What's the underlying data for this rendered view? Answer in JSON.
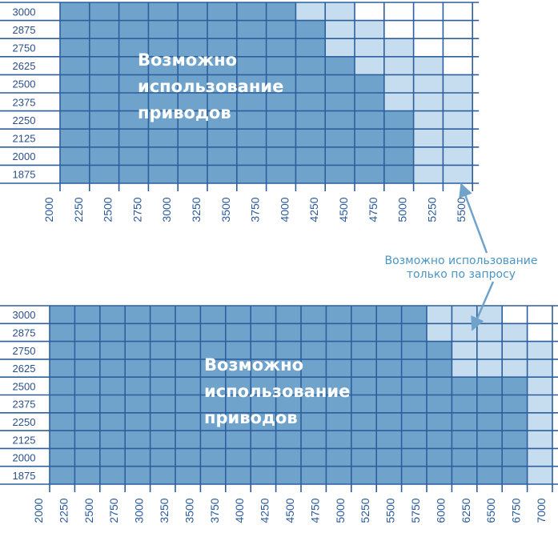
{
  "grids": [
    {
      "rows": [
        "3000",
        "2875",
        "2750",
        "2625",
        "2500",
        "2375",
        "2250",
        "2125",
        "2000",
        "1875"
      ],
      "columns": [
        "2000",
        "2250",
        "2500",
        "2750",
        "3000",
        "3250",
        "3500",
        "3750",
        "4000",
        "4250",
        "4500",
        "4750",
        "5000",
        "5250",
        "5500"
      ],
      "cells": [
        {
          "dark": 8,
          "light": 2
        },
        {
          "dark": 9,
          "light": 2
        },
        {
          "dark": 9,
          "light": 3
        },
        {
          "dark": 10,
          "light": 3
        },
        {
          "dark": 11,
          "light": 3
        },
        {
          "dark": 11,
          "light": 3
        },
        {
          "dark": 12,
          "light": 2
        },
        {
          "dark": 12,
          "light": 2
        },
        {
          "dark": 12,
          "light": 2
        },
        {
          "dark": 12,
          "light": 2
        }
      ],
      "label": [
        "Возможно",
        "использование",
        "приводов"
      ]
    },
    {
      "rows": [
        "3000",
        "2875",
        "2750",
        "2625",
        "2500",
        "2375",
        "2250",
        "2125",
        "2000",
        "1875"
      ],
      "columns": [
        "2000",
        "2250",
        "2500",
        "2750",
        "3000",
        "3250",
        "3500",
        "3750",
        "4000",
        "4250",
        "4500",
        "4750",
        "5000",
        "5250",
        "5500",
        "5750",
        "6000",
        "6250",
        "6500",
        "6750",
        "7000"
      ],
      "cells": [
        {
          "dark": 15,
          "light": 3
        },
        {
          "dark": 15,
          "light": 4
        },
        {
          "dark": 16,
          "light": 4
        },
        {
          "dark": 16,
          "light": 4
        },
        {
          "dark": 19,
          "light": 1
        },
        {
          "dark": 19,
          "light": 1
        },
        {
          "dark": 19,
          "light": 1
        },
        {
          "dark": 19,
          "light": 1
        },
        {
          "dark": 19,
          "light": 1
        },
        {
          "dark": 19,
          "light": 1
        }
      ],
      "label": [
        "Возможно",
        "использование",
        "приводов"
      ]
    }
  ],
  "note": [
    "Возможно использование",
    "только по запросу"
  ]
}
